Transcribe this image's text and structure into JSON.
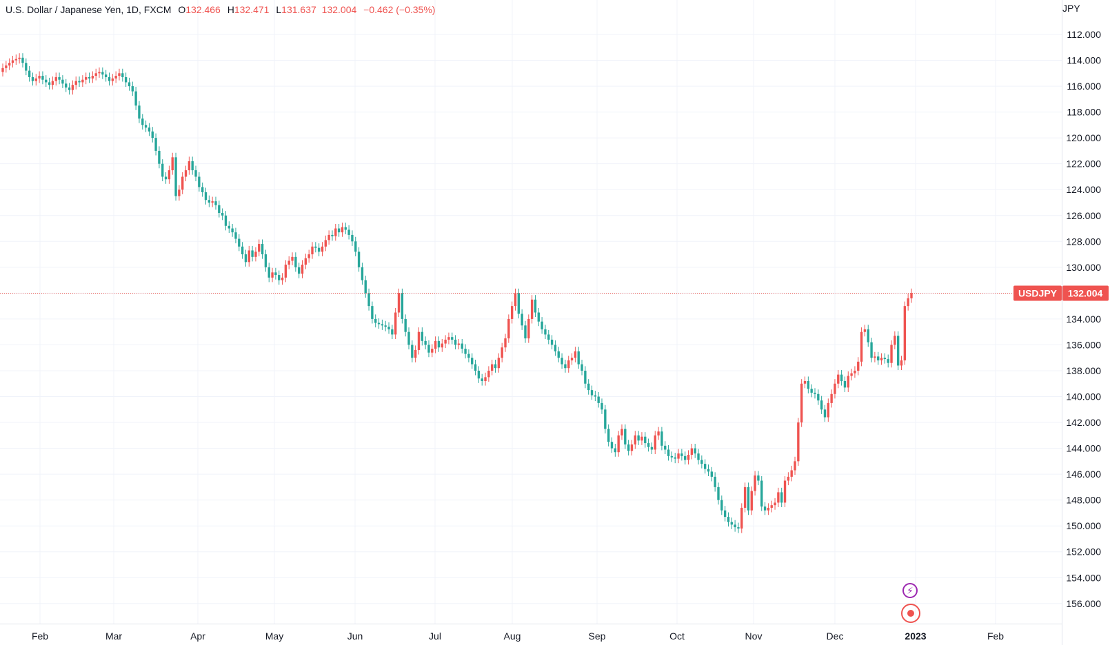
{
  "legend": {
    "symbol_title": "U.S. Dollar / Japanese Yen, 1D, FXCM",
    "open_label": "O",
    "open": "132.466",
    "high_label": "H",
    "high": "132.471",
    "low_label": "L",
    "low": "131.637",
    "close": "132.004",
    "change": "−0.462 (−0.35%)"
  },
  "price_tag": {
    "symbol": "USDJPY",
    "price": "132.004"
  },
  "colors": {
    "up": "#26a69a",
    "down": "#ef5350",
    "grid": "#f0f3fa",
    "last_price_line": "#ef5350",
    "alert_icon": "#9c27b0",
    "record_icon": "#ef5350"
  },
  "icons": {
    "alert": "lightning-icon",
    "record": "record-icon"
  },
  "chart_data": {
    "type": "candlestick",
    "title": "U.S. Dollar / Japanese Yen, 1D, FXCM",
    "symbol": "USDJPY",
    "y_axis_unit": "JPY",
    "y_inverted": true,
    "ylim": [
      111,
      156.5
    ],
    "y_ticks": [
      "112.000",
      "114.000",
      "116.000",
      "118.000",
      "120.000",
      "122.000",
      "124.000",
      "126.000",
      "128.000",
      "130.000",
      "132.000",
      "134.000",
      "136.000",
      "138.000",
      "140.000",
      "142.000",
      "144.000",
      "146.000",
      "148.000",
      "150.000",
      "152.000",
      "154.000",
      "156.000"
    ],
    "x_ticks": [
      "Feb",
      "Mar",
      "Apr",
      "May",
      "Jun",
      "Jul",
      "Aug",
      "Sep",
      "Oct",
      "Nov",
      "Dec",
      "2023",
      "Feb"
    ],
    "last_price": 132.004,
    "grid": true,
    "series": [
      {
        "name": "USDJPY",
        "close": [
          114.6,
          114.4,
          114.2,
          114.0,
          113.9,
          113.8,
          114.2,
          114.8,
          115.3,
          115.6,
          115.4,
          115.2,
          115.5,
          115.7,
          115.9,
          115.6,
          115.3,
          115.5,
          115.8,
          116.1,
          116.3,
          115.9,
          115.6,
          115.7,
          115.5,
          115.3,
          115.4,
          115.2,
          115.0,
          114.9,
          115.1,
          115.3,
          115.6,
          115.4,
          115.2,
          115.0,
          115.3,
          115.7,
          116.0,
          116.4,
          117.5,
          118.5,
          119.0,
          119.2,
          119.5,
          120.0,
          121.0,
          122.0,
          123.0,
          123.2,
          122.5,
          121.5,
          124.5,
          124.0,
          123.0,
          122.5,
          121.8,
          122.5,
          123.0,
          123.8,
          124.2,
          124.8,
          125.0,
          124.9,
          125.2,
          125.8,
          126.0,
          126.8,
          127.0,
          127.3,
          127.8,
          128.4,
          129.0,
          129.6,
          128.7,
          129.2,
          128.8,
          128.2,
          129.0,
          130.0,
          130.8,
          130.4,
          130.6,
          131.0,
          130.8,
          129.8,
          129.5,
          129.2,
          130.0,
          130.5,
          129.8,
          129.3,
          129.0,
          128.4,
          128.5,
          128.8,
          128.4,
          127.9,
          127.5,
          127.6,
          127.0,
          127.3,
          126.9,
          127.1,
          127.5,
          128.0,
          128.8,
          130.0,
          131.0,
          132.0,
          133.0,
          134.0,
          134.3,
          134.4,
          134.5,
          134.6,
          134.8,
          135.2,
          133.5,
          132.0,
          134.0,
          135.0,
          136.0,
          137.0,
          136.4,
          135.0,
          135.7,
          136.0,
          136.6,
          136.3,
          135.7,
          136.2,
          135.9,
          135.6,
          135.4,
          135.6,
          136.0,
          135.9,
          136.3,
          136.7,
          137.0,
          137.5,
          138.0,
          138.6,
          138.8,
          138.5,
          138.0,
          137.5,
          137.8,
          137.0,
          136.2,
          135.5,
          134.0,
          133.0,
          132.0,
          133.6,
          134.5,
          135.5,
          134.0,
          132.5,
          133.5,
          134.2,
          134.8,
          135.2,
          135.6,
          136.0,
          136.5,
          137.0,
          137.5,
          137.8,
          137.2,
          137.0,
          136.5,
          137.5,
          138.0,
          139.0,
          139.5,
          139.9,
          140.0,
          140.5,
          141.0,
          142.5,
          143.5,
          144.0,
          144.3,
          143.0,
          142.5,
          143.7,
          144.2,
          143.7,
          143.0,
          143.4,
          143.1,
          143.6,
          143.9,
          144.1,
          143.0,
          142.7,
          143.8,
          144.1,
          144.6,
          144.7,
          144.8,
          144.4,
          144.6,
          144.9,
          144.5,
          144.0,
          144.4,
          144.9,
          145.2,
          145.6,
          145.8,
          146.2,
          147.0,
          148.0,
          148.8,
          149.3,
          149.7,
          149.9,
          150.1,
          150.2,
          148.6,
          147.0,
          148.8,
          147.3,
          146.1,
          146.5,
          148.5,
          148.8,
          148.6,
          148.4,
          148.2,
          147.4,
          148.2,
          146.5,
          146.2,
          145.7,
          145.0,
          142.0,
          139.0,
          138.8,
          139.4,
          139.7,
          139.8,
          140.3,
          141.0,
          141.6,
          140.5,
          139.8,
          139.0,
          138.3,
          138.8,
          139.3,
          138.4,
          138.2,
          138.0,
          137.3,
          135.0,
          134.8,
          135.8,
          137.0,
          136.9,
          137.2,
          137.0,
          137.1,
          137.4,
          136.0,
          135.3,
          137.6,
          137.2,
          133.0,
          132.4,
          132.0
        ]
      }
    ]
  },
  "x_axis": {
    "labels": [
      "Feb",
      "Mar",
      "Apr",
      "May",
      "Jun",
      "Jul",
      "Aug",
      "Sep",
      "Oct",
      "Nov",
      "Dec",
      "2023",
      "Feb"
    ]
  },
  "y_axis": {
    "unit": "JPY",
    "labels": [
      "112.000",
      "114.000",
      "116.000",
      "118.000",
      "120.000",
      "122.000",
      "124.000",
      "126.000",
      "128.000",
      "130.000",
      "132.000",
      "134.000",
      "136.000",
      "138.000",
      "140.000",
      "142.000",
      "144.000",
      "146.000",
      "148.000",
      "150.000",
      "152.000",
      "154.000",
      "156.000"
    ]
  }
}
